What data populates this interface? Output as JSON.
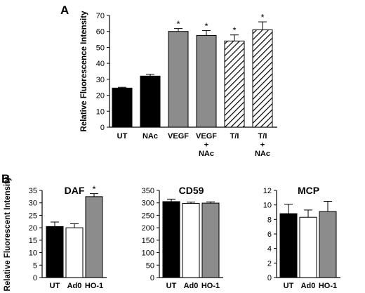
{
  "panel_letters": {
    "a": "A",
    "b": "B"
  },
  "colors": {
    "black": "#000000",
    "gray": "#8c8c8c",
    "white": "#ffffff"
  },
  "chart_data": [
    {
      "type": "bar",
      "panel": "A",
      "title": "",
      "ylabel": "Relative Fluorescence Intensity",
      "xlabel": "",
      "ylim": [
        0,
        70
      ],
      "yticks": [
        "0",
        "10",
        "20",
        "30",
        "40",
        "50",
        "60",
        "70"
      ],
      "categories": [
        [
          "UT"
        ],
        [
          "NAc"
        ],
        [
          "VEGF"
        ],
        [
          "VEGF",
          "+",
          "NAc"
        ],
        [
          "T/I"
        ],
        [
          "T/I",
          "+",
          "NAc"
        ]
      ],
      "values": [
        24.5,
        32,
        60,
        57.5,
        54,
        61
      ],
      "errors": [
        0.5,
        1.2,
        1.8,
        3,
        3.8,
        5
      ],
      "fills": [
        "black",
        "black",
        "gray",
        "gray",
        "hatch",
        "hatch"
      ],
      "significance": [
        "",
        "",
        "*",
        "*",
        "*",
        "*"
      ]
    },
    {
      "type": "bar",
      "panel": "B",
      "title": "DAF",
      "ylabel": "Relative Fluorescent Intensity",
      "ylim": [
        0,
        35
      ],
      "yticks": [
        "0",
        "5",
        "10",
        "15",
        "20",
        "25",
        "30",
        "35"
      ],
      "categories": [
        "UT",
        "Ad0",
        "HO-1"
      ],
      "values": [
        20.5,
        20,
        32.5
      ],
      "errors": [
        1.8,
        1.6,
        1.2
      ],
      "fills": [
        "black",
        "white",
        "gray"
      ],
      "significance": [
        "",
        "",
        "*"
      ]
    },
    {
      "type": "bar",
      "panel": "B",
      "title": "CD59",
      "ylim": [
        0,
        350
      ],
      "yticks": [
        "0",
        "50",
        "100",
        "150",
        "200",
        "250",
        "300",
        "350"
      ],
      "categories": [
        "UT",
        "Ad0",
        "HO-1"
      ],
      "values": [
        305,
        298,
        299
      ],
      "errors": [
        10,
        5,
        5
      ],
      "fills": [
        "black",
        "white",
        "gray"
      ],
      "significance": [
        "",
        "",
        ""
      ]
    },
    {
      "type": "bar",
      "panel": "B",
      "title": "MCP",
      "ylim": [
        0,
        12
      ],
      "yticks": [
        "0",
        "2",
        "4",
        "6",
        "8",
        "10",
        "12"
      ],
      "categories": [
        "UT",
        "Ad0",
        "HO-1"
      ],
      "values": [
        8.8,
        8.3,
        9.1
      ],
      "errors": [
        1.3,
        1.0,
        1.4
      ],
      "fills": [
        "black",
        "white",
        "gray"
      ],
      "significance": [
        "",
        "",
        ""
      ]
    }
  ]
}
